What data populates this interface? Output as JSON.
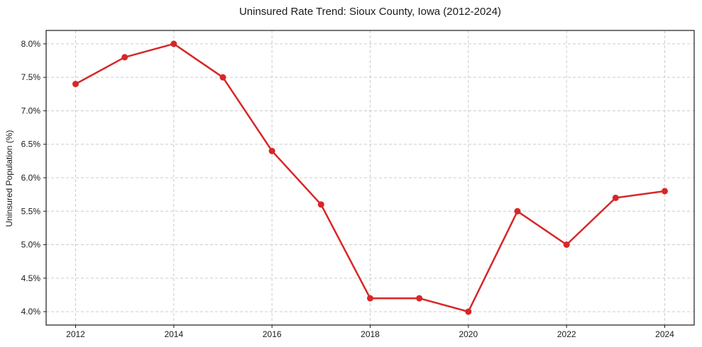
{
  "chart_data": {
    "type": "line",
    "title": "Uninsured Rate Trend: Sioux County, Iowa (2012-2024)",
    "xlabel": "",
    "ylabel": "Uninsured Population (%)",
    "x": [
      2012,
      2013,
      2014,
      2015,
      2016,
      2017,
      2018,
      2019,
      2020,
      2021,
      2022,
      2023,
      2024
    ],
    "values": [
      7.4,
      7.8,
      8.0,
      7.5,
      6.4,
      5.6,
      4.2,
      4.2,
      4.0,
      5.5,
      5.0,
      5.7,
      5.8
    ],
    "xlim": [
      2011.4,
      2024.6
    ],
    "ylim": [
      3.8,
      8.2
    ],
    "xticks": [
      2012,
      2014,
      2016,
      2018,
      2020,
      2022,
      2024
    ],
    "xtick_labels": [
      "2012",
      "2014",
      "2016",
      "2018",
      "2020",
      "2022",
      "2024"
    ],
    "yticks": [
      4.0,
      4.5,
      5.0,
      5.5,
      6.0,
      6.5,
      7.0,
      7.5,
      8.0
    ],
    "ytick_labels": [
      "4.0%",
      "4.5%",
      "5.0%",
      "5.5%",
      "6.0%",
      "6.5%",
      "7.0%",
      "7.5%",
      "8.0%"
    ],
    "grid": true,
    "grid_style": "dashed",
    "legend": false,
    "line_color": "#d62728",
    "marker": "circle",
    "grid_color": "#cccccc",
    "axis_color": "#1a1a1a",
    "text_color": "#1a1a1a",
    "background": "#ffffff"
  }
}
